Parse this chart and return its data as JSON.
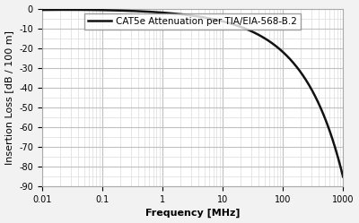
{
  "legend_label": "CAT5e Attenuation per TIA/EIA-568-B.2",
  "xlabel": "Frequency [MHz]",
  "ylabel": "Insertion Loss [dB / 100 m]",
  "xmin": 0.01,
  "xmax": 1000,
  "ymin": -90,
  "ymax": 0,
  "yticks": [
    0,
    -10,
    -20,
    -30,
    -40,
    -50,
    -60,
    -70,
    -80,
    -90
  ],
  "line_color": "#111111",
  "line_width": 1.8,
  "plot_bg_color": "#ffffff",
  "fig_bg_color": "#f2f2f2",
  "major_grid_color": "#c0c0c0",
  "minor_grid_color": "#dcdcdc",
  "legend_fontsize": 7.5,
  "axis_fontsize": 8,
  "tick_fontsize": 7
}
